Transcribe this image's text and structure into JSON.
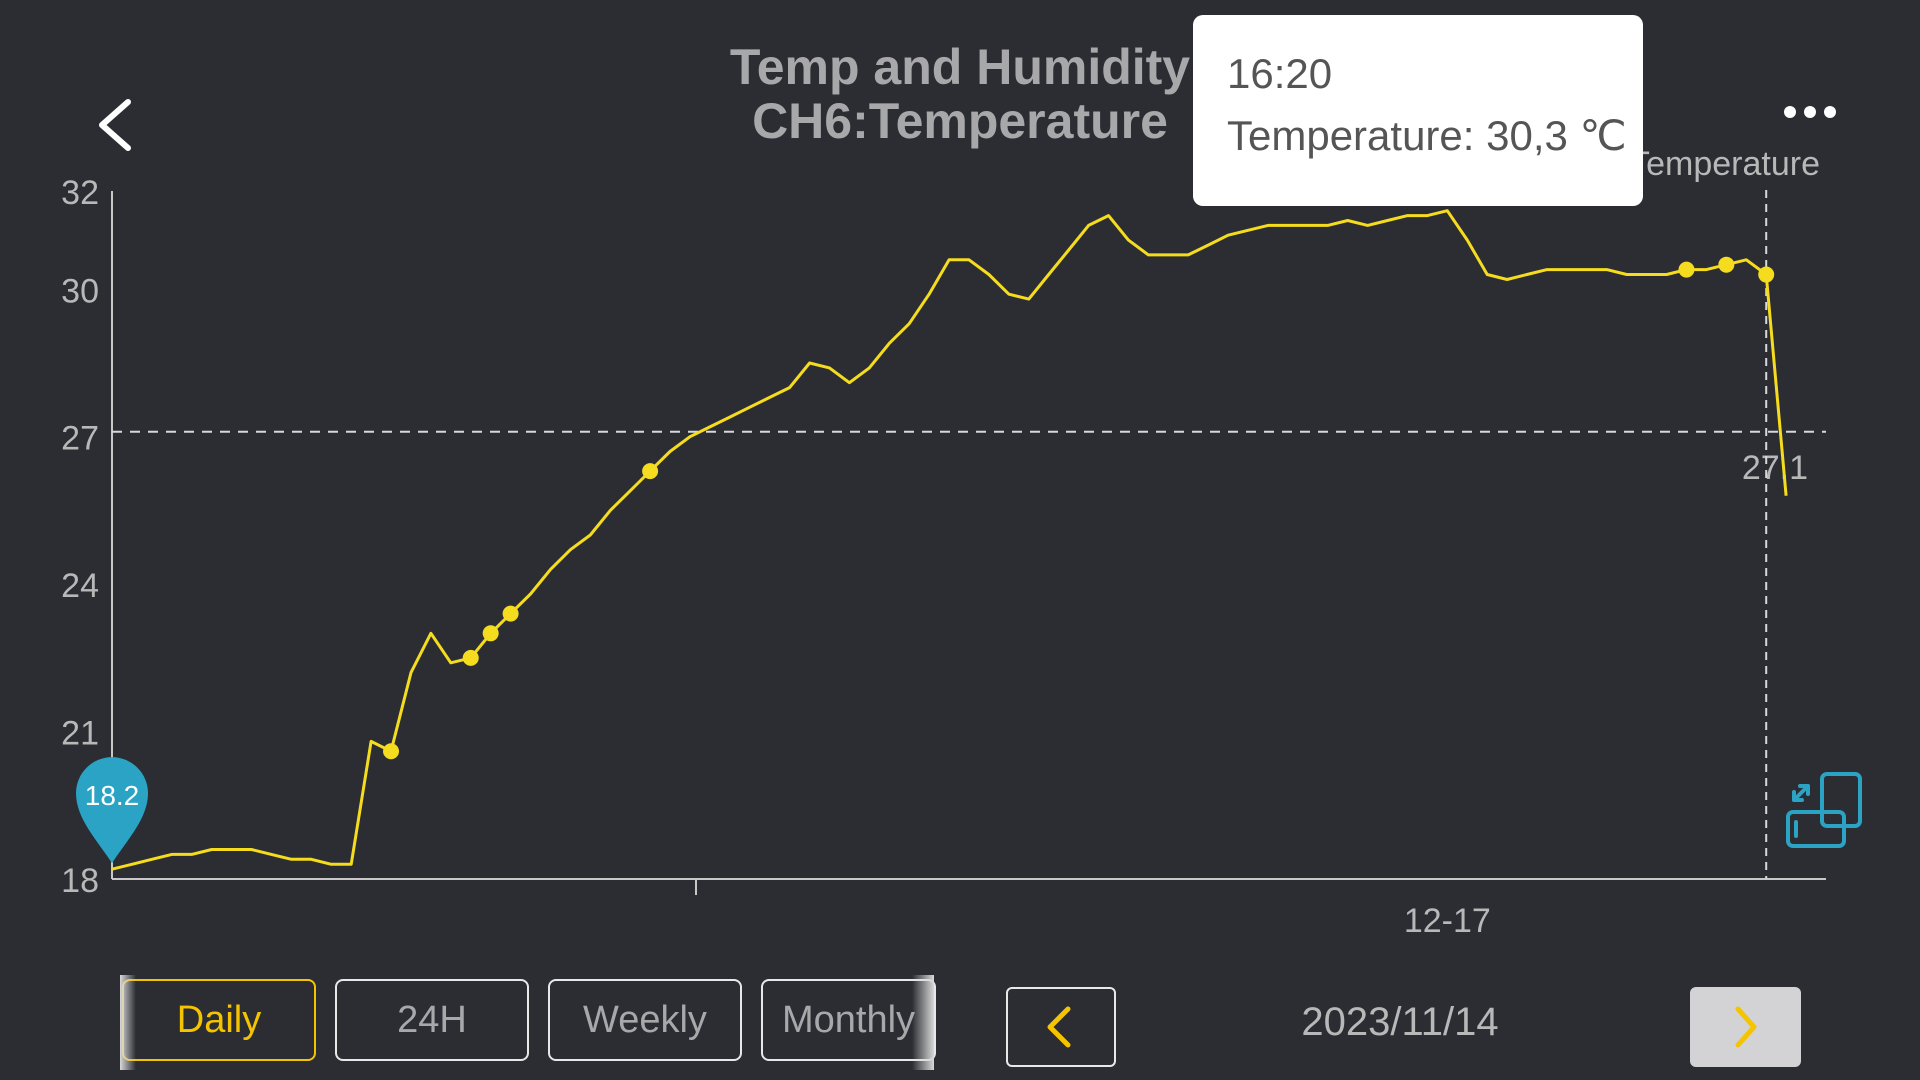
{
  "header": {
    "title_line1": "Temp and Humidity",
    "title_line2": "CH6:Temperature",
    "legend_label": "Temperature"
  },
  "tooltip": {
    "time": "16:20",
    "value": "Temperature: 30,3 ℃"
  },
  "icons": {
    "back": "chevron-left-icon",
    "more": "more-horizontal-icon",
    "rotate": "rotate-screen-icon",
    "prev": "chevron-left-icon",
    "next": "chevron-right-icon"
  },
  "colors": {
    "background": "#2b2d33",
    "line": "#f5dc1e",
    "accent": "#f5c400",
    "pin": "#2aa3c4",
    "axis": "#c8c8c8"
  },
  "tabs": [
    {
      "label": "Daily",
      "active": true
    },
    {
      "label": "24H",
      "active": false
    },
    {
      "label": "Weekly",
      "active": false
    },
    {
      "label": "Monthly",
      "active": false
    }
  ],
  "date_nav": {
    "date": "2023/11/14"
  },
  "chart_data": {
    "type": "line",
    "title": "",
    "xlabel": "",
    "ylabel": "",
    "yticks": [
      18,
      21,
      24,
      27,
      30,
      32
    ],
    "ylim": [
      18,
      32
    ],
    "xlim": [
      0,
      86
    ],
    "x_tick_labels": [
      {
        "x": 67,
        "label": "12-17"
      }
    ],
    "grid": false,
    "legend": "top-right",
    "reference_line": {
      "value": 27.1,
      "label": "27.1"
    },
    "crosshair_x": 83,
    "min_marker": {
      "x": 0,
      "value": 18.2,
      "label": "18.2"
    },
    "series": [
      {
        "name": "Temperature",
        "x": [
          0,
          1,
          2,
          3,
          4,
          5,
          6,
          7,
          8,
          9,
          10,
          11,
          12,
          13,
          14,
          15,
          16,
          17,
          18,
          19,
          20,
          21,
          22,
          23,
          24,
          25,
          26,
          27,
          28,
          29,
          30,
          31,
          32,
          33,
          34,
          35,
          36,
          37,
          38,
          39,
          40,
          41,
          42,
          43,
          44,
          45,
          46,
          47,
          48,
          49,
          50,
          51,
          52,
          53,
          54,
          55,
          56,
          57,
          58,
          59,
          60,
          61,
          62,
          63,
          64,
          65,
          66,
          67,
          68,
          69,
          70,
          71,
          72,
          73,
          74,
          75,
          76,
          77,
          78,
          79,
          80,
          81,
          82,
          83,
          84
        ],
        "values": [
          18.2,
          18.3,
          18.4,
          18.5,
          18.5,
          18.6,
          18.6,
          18.6,
          18.5,
          18.4,
          18.4,
          18.3,
          18.3,
          20.8,
          20.6,
          22.2,
          23.0,
          22.4,
          22.5,
          23.0,
          23.4,
          23.8,
          24.3,
          24.7,
          25.0,
          25.5,
          25.9,
          26.3,
          26.7,
          27.0,
          27.2,
          27.4,
          27.6,
          27.8,
          28.0,
          28.5,
          28.4,
          28.1,
          28.4,
          28.9,
          29.3,
          29.9,
          30.6,
          30.6,
          30.3,
          29.9,
          29.8,
          30.3,
          30.8,
          31.3,
          31.5,
          31.0,
          30.7,
          30.7,
          30.7,
          30.9,
          31.1,
          31.2,
          31.3,
          31.3,
          31.3,
          31.3,
          31.4,
          31.3,
          31.4,
          31.5,
          31.5,
          31.6,
          31.0,
          30.3,
          30.2,
          30.3,
          30.4,
          30.4,
          30.4,
          30.4,
          30.3,
          30.3,
          30.3,
          30.4,
          30.4,
          30.5,
          30.6,
          30.3,
          25.8
        ],
        "markers_x": [
          14,
          18,
          19,
          20,
          27,
          79,
          81,
          83
        ]
      }
    ]
  }
}
